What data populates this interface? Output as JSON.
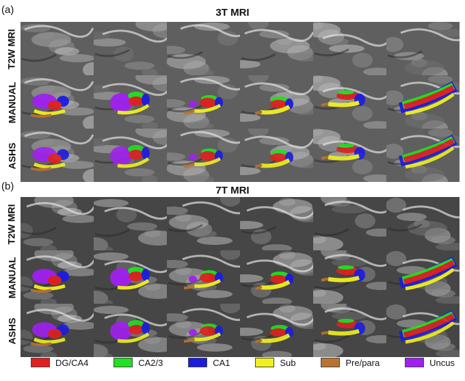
{
  "panels": [
    {
      "letter": "(a)",
      "title": "3T MRI",
      "rows": [
        "T2W MRI",
        "MANUAL",
        "ASHS"
      ]
    },
    {
      "letter": "(b)",
      "title": "7T MRI",
      "rows": [
        "T2W MRI",
        "MANUAL",
        "ASHS"
      ]
    }
  ],
  "legend": [
    {
      "label": "DG/CA4",
      "color": "#e02020"
    },
    {
      "label": "CA2/3",
      "color": "#22e022"
    },
    {
      "label": "CA1",
      "color": "#1c1ce0"
    },
    {
      "label": "Sub",
      "color": "#f0f020"
    },
    {
      "label": "Pre/para",
      "color": "#b87333"
    },
    {
      "label": "Uncus",
      "color": "#a020f0"
    }
  ]
}
